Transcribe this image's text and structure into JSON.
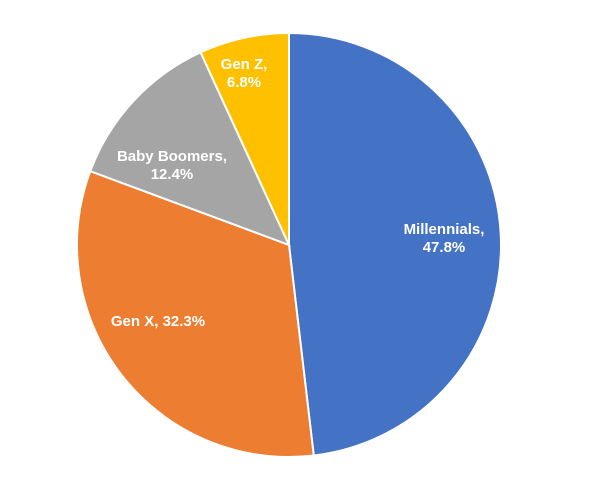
{
  "chart_data": {
    "type": "pie",
    "categories": [
      "Millennials",
      "Gen X",
      "Baby Boomers",
      "Gen Z"
    ],
    "values": [
      47.8,
      32.3,
      12.4,
      6.8
    ],
    "value_format": "percent",
    "labels": [
      [
        "Millennials,",
        "47.8%"
      ],
      [
        "Gen X, 32.3%"
      ],
      [
        "Baby Boomers,",
        "12.4%"
      ],
      [
        "Gen Z,",
        "6.8%"
      ]
    ],
    "colors": [
      "#4472c4",
      "#ed7d31",
      "#a5a5a5",
      "#ffc000"
    ],
    "start_angle": "top",
    "direction": "clockwise",
    "title": "",
    "legend": "none"
  }
}
